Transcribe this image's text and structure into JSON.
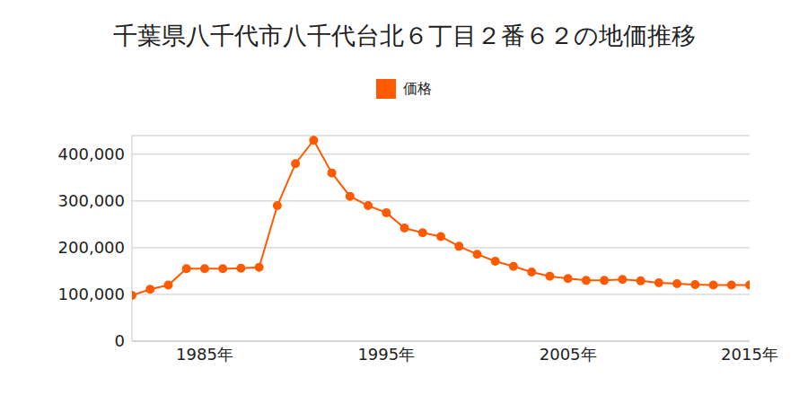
{
  "chart_data": {
    "type": "line",
    "title": "千葉県八千代市八千代台北６丁目２番６２の地価推移",
    "x": [
      1981,
      1982,
      1983,
      1984,
      1985,
      1986,
      1987,
      1988,
      1989,
      1990,
      1991,
      1992,
      1993,
      1994,
      1995,
      1996,
      1997,
      1998,
      1999,
      2000,
      2001,
      2002,
      2003,
      2004,
      2005,
      2006,
      2007,
      2008,
      2009,
      2010,
      2011,
      2012,
      2013,
      2014,
      2015
    ],
    "series": [
      {
        "name": "価格",
        "color": "#ff5a00",
        "marker": "circle",
        "values": [
          98000,
          111000,
          120000,
          155000,
          155000,
          155000,
          156000,
          158000,
          290000,
          380000,
          430000,
          360000,
          310000,
          290000,
          275000,
          242000,
          232000,
          224000,
          203000,
          186000,
          171000,
          160000,
          148000,
          139000,
          134000,
          130000,
          130000,
          132000,
          129000,
          125000,
          123000,
          121000,
          120000,
          120000,
          120000
        ]
      }
    ],
    "xlim": [
      1981,
      2015
    ],
    "xticks": [
      {
        "value": 1985,
        "label": "1985年"
      },
      {
        "value": 1995,
        "label": "1995年"
      },
      {
        "value": 2005,
        "label": "2005年"
      },
      {
        "value": 2015,
        "label": "2015年"
      }
    ],
    "ylim": [
      0,
      440000
    ],
    "yticks": [
      0,
      {
        "value": 100000,
        "label": "100,000"
      },
      {
        "value": 200000,
        "label": "200,000"
      },
      {
        "value": 300000,
        "label": "300,000"
      },
      {
        "value": 400000,
        "label": "400,000"
      }
    ],
    "grid": true,
    "legend": "top"
  }
}
